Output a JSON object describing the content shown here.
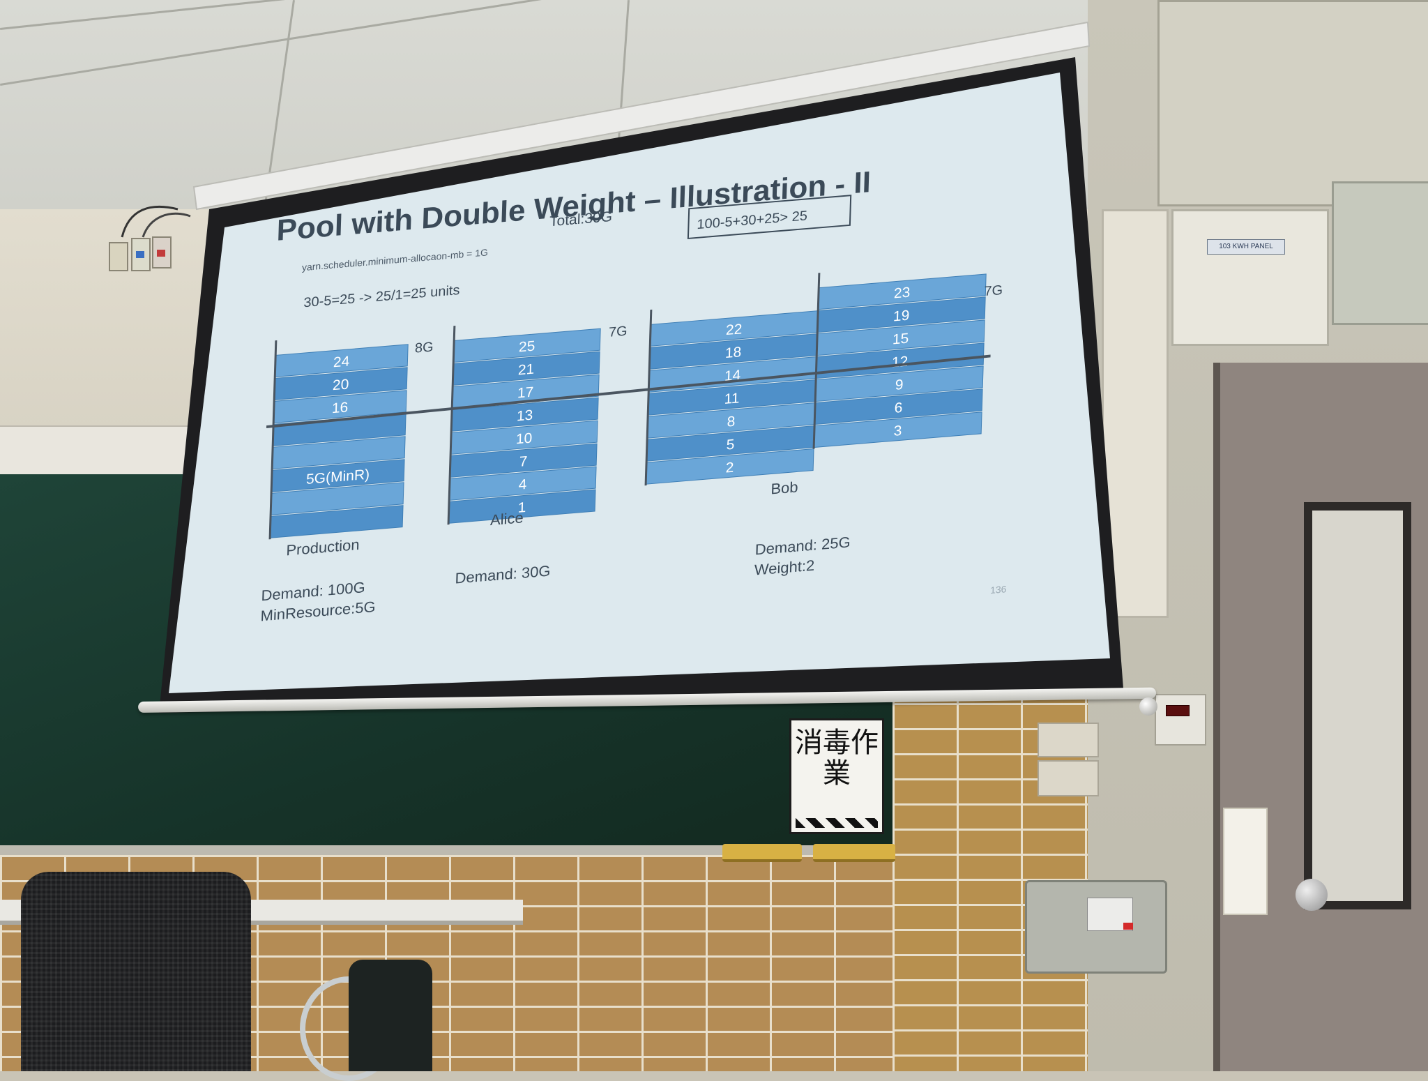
{
  "scene": {
    "description_colors": {
      "slide_background": "#dfeaee",
      "block_fill": "#4f90c9",
      "block_fill_light": "#6aa6d8",
      "text_dark": "#3d4a56"
    }
  },
  "slide": {
    "title": "Pool with Double Weight – Illustration - II",
    "total": "Total:30G",
    "formula_box": "100-5+30+25> 25",
    "config_line": "yarn.scheduler.minimum-allocaon-mb = 1G",
    "units_line": "30-5=25 -> 25/1=25 units",
    "page_number": "136",
    "pools": [
      {
        "id": "production",
        "name": "Production",
        "capacity_label": "8G",
        "demand": "Demand: 100G",
        "extra": "MinResource:5G",
        "blocks": [
          "24",
          "20",
          "16",
          "",
          "",
          "5G(MinR)",
          "",
          ""
        ]
      },
      {
        "id": "alice",
        "name": "Alice",
        "capacity_label": "7G",
        "demand": "Demand: 30G",
        "extra": "",
        "blocks": [
          "25",
          "21",
          "17",
          "13",
          "10",
          "7",
          "4",
          "1"
        ]
      },
      {
        "id": "bob",
        "name": "Bob",
        "capacity_label": "7G",
        "demand": "Demand: 25G",
        "extra": "Weight:2",
        "blocks_left": [
          "22",
          "18",
          "14",
          "11",
          "8",
          "5",
          "2"
        ],
        "blocks_right": [
          "23",
          "19",
          "15",
          "12",
          "9",
          "6",
          "3"
        ]
      }
    ]
  },
  "room": {
    "door_panel_label": "103 KWH PANEL",
    "sign_text": "消毒作業"
  }
}
